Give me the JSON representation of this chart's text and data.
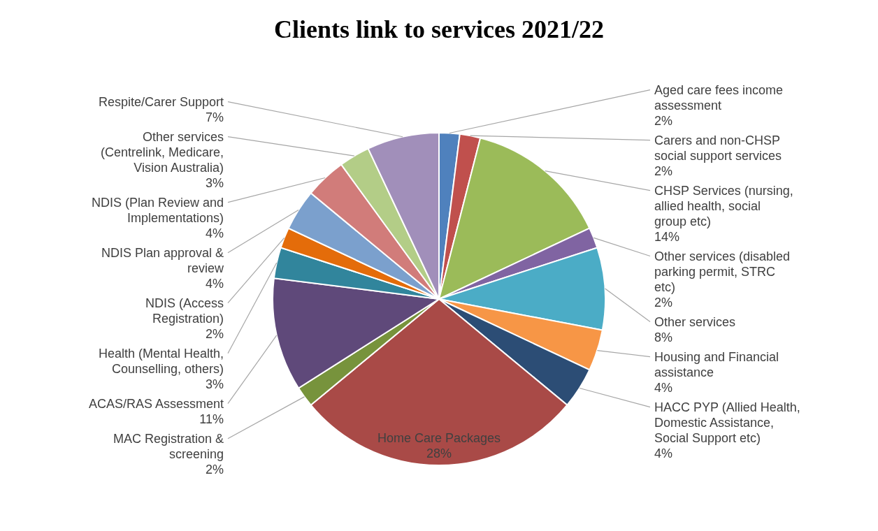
{
  "chart_data": {
    "type": "pie",
    "title": "Clients link to services 2021/22",
    "categories": [
      "Aged care fees income assessment",
      "Carers and non-CHSP social support services",
      "CHSP Services (nursing, allied health, social group etc)",
      "Other services (disabled parking permit, STRC etc)",
      "Other services",
      "Housing and Financial assistance",
      "HACC PYP (Allied Health, Domestic Assistance, Social Support etc)",
      "Home Care Packages",
      "MAC Registration & screening",
      "ACAS/RAS Assessment",
      "Health (Mental Health, Counselling, others)",
      "NDIS (Access Registration)",
      "NDIS Plan approval & review",
      "NDIS (Plan Review and Implementations)",
      "Other services (Centrelink, Medicare, Vision Australia)",
      "Respite/Carer Support"
    ],
    "values": [
      2,
      2,
      14,
      2,
      8,
      4,
      4,
      28,
      2,
      11,
      3,
      2,
      4,
      4,
      3,
      7
    ],
    "value_labels": [
      "2%",
      "2%",
      "14%",
      "2%",
      "8%",
      "4%",
      "4%",
      "28%",
      "2%",
      "11%",
      "3%",
      "2%",
      "4%",
      "4%",
      "3%",
      "7%"
    ],
    "colors": [
      "#4f81bd",
      "#c0504d",
      "#9bbb59",
      "#8064a2",
      "#4bacc6",
      "#f79646",
      "#2c4d75",
      "#a94a47",
      "#77933c",
      "#5f497a",
      "#31859c",
      "#e46c0a",
      "#7ba0cd",
      "#d17c7a",
      "#b3cd87",
      "#a18fba"
    ],
    "legend": false
  }
}
